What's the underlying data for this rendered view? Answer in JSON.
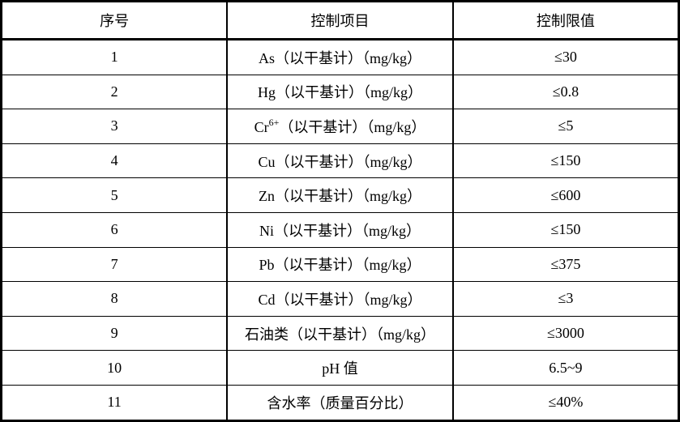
{
  "table": {
    "headers": [
      "序号",
      "控制项目",
      "控制限值"
    ],
    "rows": [
      {
        "no": "1",
        "name": "As",
        "sup": "",
        "suffix": "（以干基计）（mg/kg）",
        "limit": "≤30"
      },
      {
        "no": "2",
        "name": "Hg",
        "sup": "",
        "suffix": "（以干基计）（mg/kg）",
        "limit": "≤0.8"
      },
      {
        "no": "3",
        "name": "Cr",
        "sup": "6+",
        "suffix": "（以干基计）（mg/kg）",
        "limit": "≤5"
      },
      {
        "no": "4",
        "name": "Cu",
        "sup": "",
        "suffix": "（以干基计）（mg/kg）",
        "limit": "≤150"
      },
      {
        "no": "5",
        "name": "Zn",
        "sup": "",
        "suffix": "（以干基计）（mg/kg）",
        "limit": "≤600"
      },
      {
        "no": "6",
        "name": "Ni",
        "sup": "",
        "suffix": "（以干基计）（mg/kg）",
        "limit": "≤150"
      },
      {
        "no": "7",
        "name": "Pb",
        "sup": "",
        "suffix": "（以干基计）（mg/kg）",
        "limit": "≤375"
      },
      {
        "no": "8",
        "name": "Cd",
        "sup": "",
        "suffix": "（以干基计）（mg/kg）",
        "limit": "≤3"
      },
      {
        "no": "9",
        "name": "石油类",
        "sup": "",
        "suffix": "（以干基计）（mg/kg）",
        "limit": "≤3000"
      },
      {
        "no": "10",
        "name": "pH 值",
        "sup": "",
        "suffix": "",
        "limit": "6.5~9"
      },
      {
        "no": "11",
        "name": "含水率",
        "sup": "",
        "suffix": "（质量百分比）",
        "limit": "≤40%"
      }
    ]
  }
}
